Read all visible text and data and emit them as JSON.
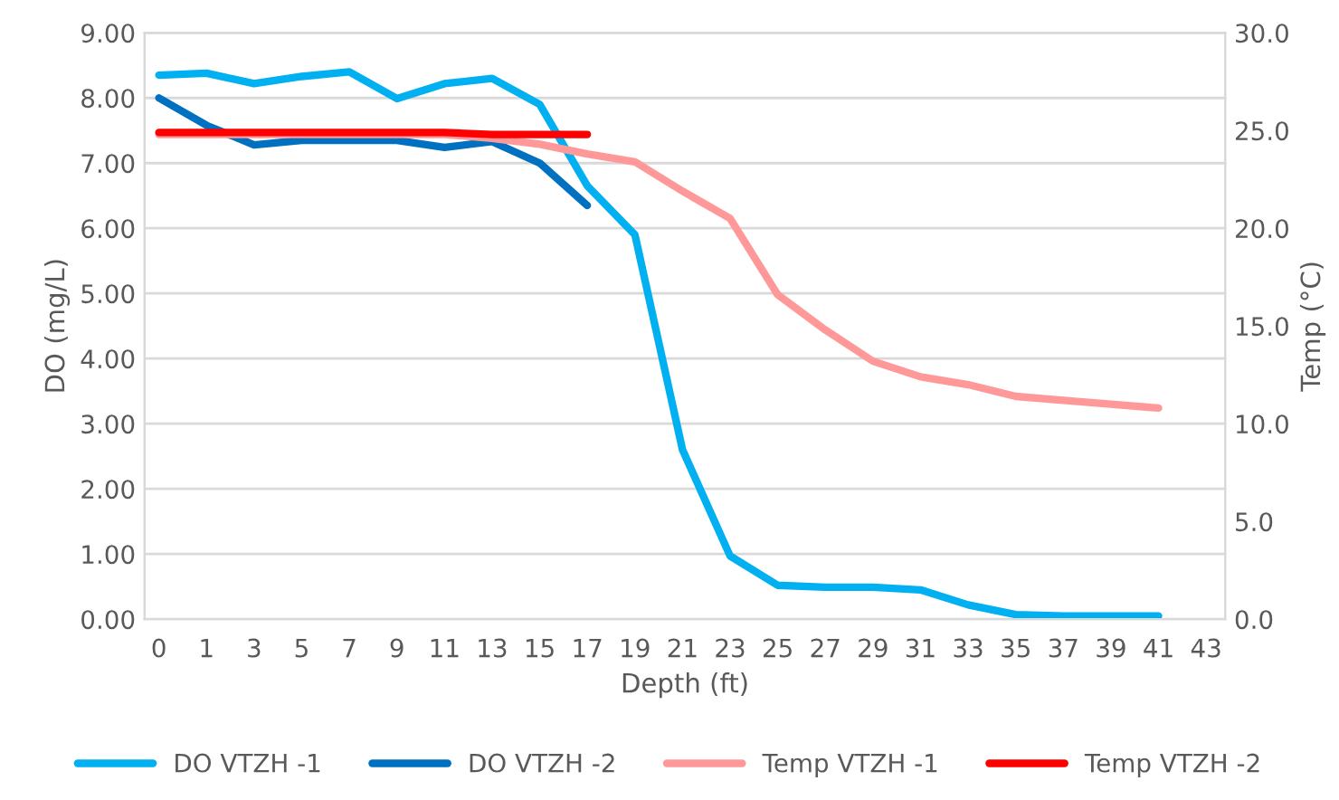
{
  "chart_data": {
    "type": "line",
    "categories": [
      "0",
      "1",
      "3",
      "5",
      "7",
      "9",
      "11",
      "13",
      "15",
      "17",
      "19",
      "21",
      "23",
      "25",
      "27",
      "29",
      "31",
      "33",
      "35",
      "37",
      "39",
      "41",
      "43"
    ],
    "xlabel": "Depth (ft)",
    "ylabel": "DO (mg/L)",
    "y2label": "Temp (°C)",
    "ylim": [
      0,
      9
    ],
    "yticks": [
      {
        "value": 0,
        "label": "0.00"
      },
      {
        "value": 1,
        "label": "1.00"
      },
      {
        "value": 2,
        "label": "2.00"
      },
      {
        "value": 3,
        "label": "3.00"
      },
      {
        "value": 4,
        "label": "4.00"
      },
      {
        "value": 5,
        "label": "5.00"
      },
      {
        "value": 6,
        "label": "6.00"
      },
      {
        "value": 7,
        "label": "7.00"
      },
      {
        "value": 8,
        "label": "8.00"
      },
      {
        "value": 9,
        "label": "9.00"
      }
    ],
    "y2lim": [
      0,
      30
    ],
    "y2ticks": [
      {
        "value": 0,
        "label": "0.0"
      },
      {
        "value": 5,
        "label": "5.0"
      },
      {
        "value": 10,
        "label": "10.0"
      },
      {
        "value": 15,
        "label": "15.0"
      },
      {
        "value": 20,
        "label": "20.0"
      },
      {
        "value": 25,
        "label": "25.0"
      },
      {
        "value": 30,
        "label": "30.0"
      }
    ],
    "grid": "y",
    "legend": "bottom",
    "marker": "none",
    "line_style": "solid",
    "series": [
      {
        "name": "DO VTZH -1",
        "color": "#00b0f0",
        "values": [
          8.35,
          8.38,
          8.22,
          8.33,
          8.4,
          7.99,
          8.22,
          8.3,
          7.9,
          6.65,
          5.9,
          2.6,
          0.97,
          0.52,
          0.49,
          0.49,
          0.45,
          0.22,
          0.07,
          0.05,
          0.05,
          0.05,
          null
        ]
      },
      {
        "name": "DO VTZH -2",
        "color": "#0070c0",
        "values": [
          8.0,
          7.58,
          7.28,
          7.35,
          7.35,
          7.35,
          7.24,
          7.33,
          7.0,
          6.35,
          null,
          null,
          null,
          null,
          null,
          null,
          null,
          null,
          null,
          null,
          null,
          null,
          null
        ]
      },
      {
        "name": "Temp VTZH -1",
        "color": "#ff9999",
        "axis": "y2",
        "values": [
          24.8,
          24.8,
          24.8,
          24.8,
          24.8,
          24.8,
          24.8,
          24.6,
          24.3,
          23.8,
          23.4,
          21.9,
          20.5,
          16.6,
          14.8,
          13.2,
          12.4,
          12.0,
          11.4,
          11.2,
          11.0,
          10.8,
          null
        ]
      },
      {
        "name": "Temp VTZH -2",
        "color": "#ff0000",
        "axis": "y2",
        "values": [
          24.9,
          24.9,
          24.9,
          24.9,
          24.9,
          24.9,
          24.9,
          24.8,
          24.8,
          24.8,
          null,
          null,
          null,
          null,
          null,
          null,
          null,
          null,
          null,
          null,
          null,
          null,
          null
        ]
      }
    ]
  }
}
